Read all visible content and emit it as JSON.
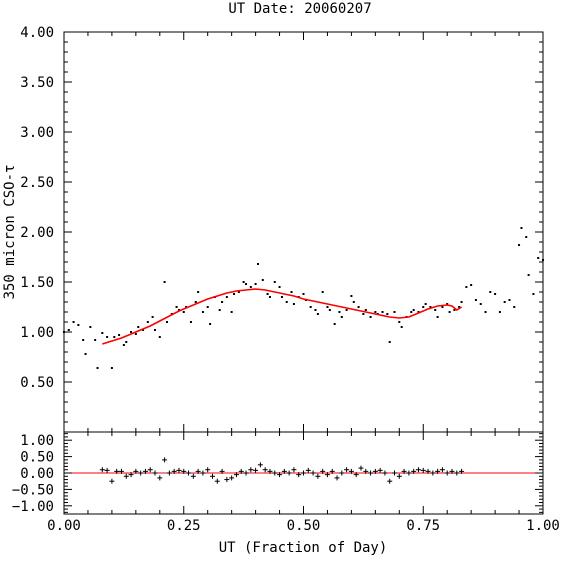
{
  "chart_data": [
    {
      "type": "scatter",
      "title": "UT Date: 20060207",
      "ylabel": "350 micron CSO-τ",
      "xlim": [
        0.0,
        1.0
      ],
      "ylim": [
        0.0,
        4.0
      ],
      "x_ticks": [
        "0.00",
        "0.25",
        "0.50",
        "0.75",
        "1.00"
      ],
      "y_ticks": [
        "0.50",
        "1.00",
        "1.50",
        "2.00",
        "2.50",
        "3.00",
        "3.50",
        "4.00"
      ],
      "colors": {
        "points": "#000000",
        "fit": "#ff0000"
      },
      "series": [
        {
          "marker": "dot",
          "x": [
            0.0,
            0.01,
            0.02,
            0.03,
            0.04,
            0.045,
            0.055,
            0.065,
            0.07,
            0.08,
            0.09,
            0.1,
            0.105,
            0.115,
            0.125,
            0.13,
            0.14,
            0.15,
            0.155,
            0.165,
            0.175,
            0.185,
            0.19,
            0.2,
            0.21,
            0.215,
            0.225,
            0.235,
            0.24,
            0.25,
            0.255,
            0.265,
            0.275,
            0.28,
            0.29,
            0.3,
            0.305,
            0.315,
            0.325,
            0.33,
            0.34,
            0.35,
            0.355,
            0.365,
            0.375,
            0.38,
            0.39,
            0.4,
            0.405,
            0.415,
            0.425,
            0.43,
            0.44,
            0.45,
            0.455,
            0.465,
            0.475,
            0.48,
            0.49,
            0.5,
            0.505,
            0.515,
            0.525,
            0.53,
            0.54,
            0.55,
            0.555,
            0.565,
            0.575,
            0.58,
            0.59,
            0.6,
            0.605,
            0.615,
            0.625,
            0.63,
            0.64,
            0.65,
            0.655,
            0.665,
            0.675,
            0.68,
            0.69,
            0.7,
            0.705,
            0.715,
            0.725,
            0.73,
            0.74,
            0.75,
            0.755,
            0.765,
            0.775,
            0.78,
            0.79,
            0.8,
            0.805,
            0.815,
            0.825,
            0.83,
            0.84,
            0.85,
            0.86,
            0.87,
            0.88,
            0.89,
            0.9,
            0.91,
            0.92,
            0.93,
            0.94,
            0.95,
            0.955,
            0.965,
            0.97,
            0.98,
            0.99,
            1.0
          ],
          "y": [
            1.0,
            1.02,
            1.1,
            1.07,
            0.92,
            0.78,
            1.05,
            0.92,
            0.64,
            0.99,
            0.95,
            0.64,
            0.95,
            0.97,
            0.87,
            0.9,
            1.0,
            0.98,
            1.05,
            1.02,
            1.1,
            1.15,
            1.02,
            0.95,
            1.5,
            1.1,
            1.18,
            1.25,
            1.22,
            1.2,
            1.25,
            1.1,
            1.3,
            1.4,
            1.2,
            1.25,
            1.08,
            1.35,
            1.22,
            1.3,
            1.35,
            1.2,
            1.38,
            1.4,
            1.5,
            1.48,
            1.45,
            1.48,
            1.68,
            1.52,
            1.38,
            1.35,
            1.5,
            1.45,
            1.35,
            1.3,
            1.4,
            1.28,
            1.35,
            1.38,
            1.32,
            1.25,
            1.22,
            1.18,
            1.4,
            1.25,
            1.22,
            1.08,
            1.2,
            1.15,
            1.22,
            1.36,
            1.3,
            1.25,
            1.18,
            1.22,
            1.15,
            1.2,
            1.18,
            1.2,
            1.18,
            0.9,
            1.2,
            1.1,
            1.05,
            1.15,
            1.2,
            1.22,
            1.2,
            1.25,
            1.28,
            1.25,
            1.22,
            1.15,
            1.25,
            1.28,
            1.2,
            1.22,
            1.25,
            1.3,
            1.45,
            1.47,
            1.32,
            1.28,
            1.2,
            1.4,
            1.38,
            1.2,
            1.3,
            1.32,
            1.25,
            1.87,
            2.04,
            1.95,
            1.57,
            1.38,
            1.74,
            1.72
          ]
        },
        {
          "marker": "line",
          "x": [
            0.08,
            0.1,
            0.12,
            0.14,
            0.16,
            0.18,
            0.2,
            0.22,
            0.24,
            0.26,
            0.28,
            0.3,
            0.32,
            0.34,
            0.36,
            0.38,
            0.4,
            0.42,
            0.44,
            0.46,
            0.48,
            0.5,
            0.52,
            0.54,
            0.56,
            0.58,
            0.6,
            0.62,
            0.64,
            0.66,
            0.68,
            0.7,
            0.72,
            0.74,
            0.76,
            0.78,
            0.8,
            0.81,
            0.82,
            0.83
          ],
          "y": [
            0.88,
            0.91,
            0.94,
            0.98,
            1.02,
            1.06,
            1.11,
            1.16,
            1.21,
            1.25,
            1.29,
            1.33,
            1.36,
            1.39,
            1.41,
            1.42,
            1.43,
            1.42,
            1.4,
            1.38,
            1.36,
            1.33,
            1.31,
            1.29,
            1.27,
            1.25,
            1.23,
            1.21,
            1.19,
            1.17,
            1.15,
            1.14,
            1.15,
            1.19,
            1.23,
            1.26,
            1.27,
            1.26,
            1.22,
            1.25
          ]
        }
      ]
    },
    {
      "type": "scatter",
      "xlabel": "UT (Fraction of Day)",
      "xlim": [
        0.0,
        1.0
      ],
      "ylim": [
        -1.25,
        1.25
      ],
      "x_ticks": [
        "0.00",
        "0.25",
        "0.50",
        "0.75",
        "1.00"
      ],
      "y_ticks": [
        "1.00",
        "0.50",
        "0.00",
        "−0.50",
        "−1.00"
      ],
      "reference_line_y": 0.0,
      "series": [
        {
          "marker": "plus",
          "x": [
            0.08,
            0.09,
            0.1,
            0.11,
            0.12,
            0.13,
            0.14,
            0.15,
            0.16,
            0.17,
            0.18,
            0.19,
            0.2,
            0.21,
            0.22,
            0.23,
            0.24,
            0.25,
            0.26,
            0.27,
            0.28,
            0.29,
            0.3,
            0.31,
            0.32,
            0.33,
            0.34,
            0.35,
            0.36,
            0.37,
            0.38,
            0.39,
            0.4,
            0.41,
            0.42,
            0.43,
            0.44,
            0.45,
            0.46,
            0.47,
            0.48,
            0.49,
            0.5,
            0.51,
            0.52,
            0.53,
            0.54,
            0.55,
            0.56,
            0.57,
            0.58,
            0.59,
            0.6,
            0.61,
            0.62,
            0.63,
            0.64,
            0.65,
            0.66,
            0.67,
            0.68,
            0.69,
            0.7,
            0.71,
            0.72,
            0.73,
            0.74,
            0.75,
            0.76,
            0.77,
            0.78,
            0.79,
            0.8,
            0.81,
            0.82,
            0.83
          ],
          "y": [
            0.1,
            0.08,
            -0.25,
            0.05,
            0.05,
            -0.1,
            -0.05,
            0.05,
            0.0,
            0.05,
            0.1,
            0.0,
            -0.15,
            0.4,
            0.0,
            0.05,
            0.08,
            0.05,
            0.0,
            -0.1,
            0.05,
            0.0,
            0.1,
            -0.1,
            -0.25,
            0.05,
            -0.2,
            -0.15,
            -0.05,
            0.05,
            0.0,
            0.1,
            0.08,
            0.25,
            0.1,
            0.05,
            0.0,
            -0.05,
            0.05,
            0.0,
            0.1,
            -0.05,
            0.0,
            0.08,
            0.0,
            -0.1,
            0.05,
            -0.05,
            0.05,
            -0.15,
            0.0,
            0.1,
            0.05,
            -0.05,
            0.15,
            0.05,
            0.0,
            0.05,
            0.08,
            0.0,
            -0.25,
            0.0,
            -0.1,
            0.05,
            0.0,
            0.05,
            0.1,
            0.08,
            0.05,
            0.0,
            0.05,
            0.1,
            0.0,
            0.05,
            0.0,
            0.05
          ]
        }
      ]
    }
  ]
}
